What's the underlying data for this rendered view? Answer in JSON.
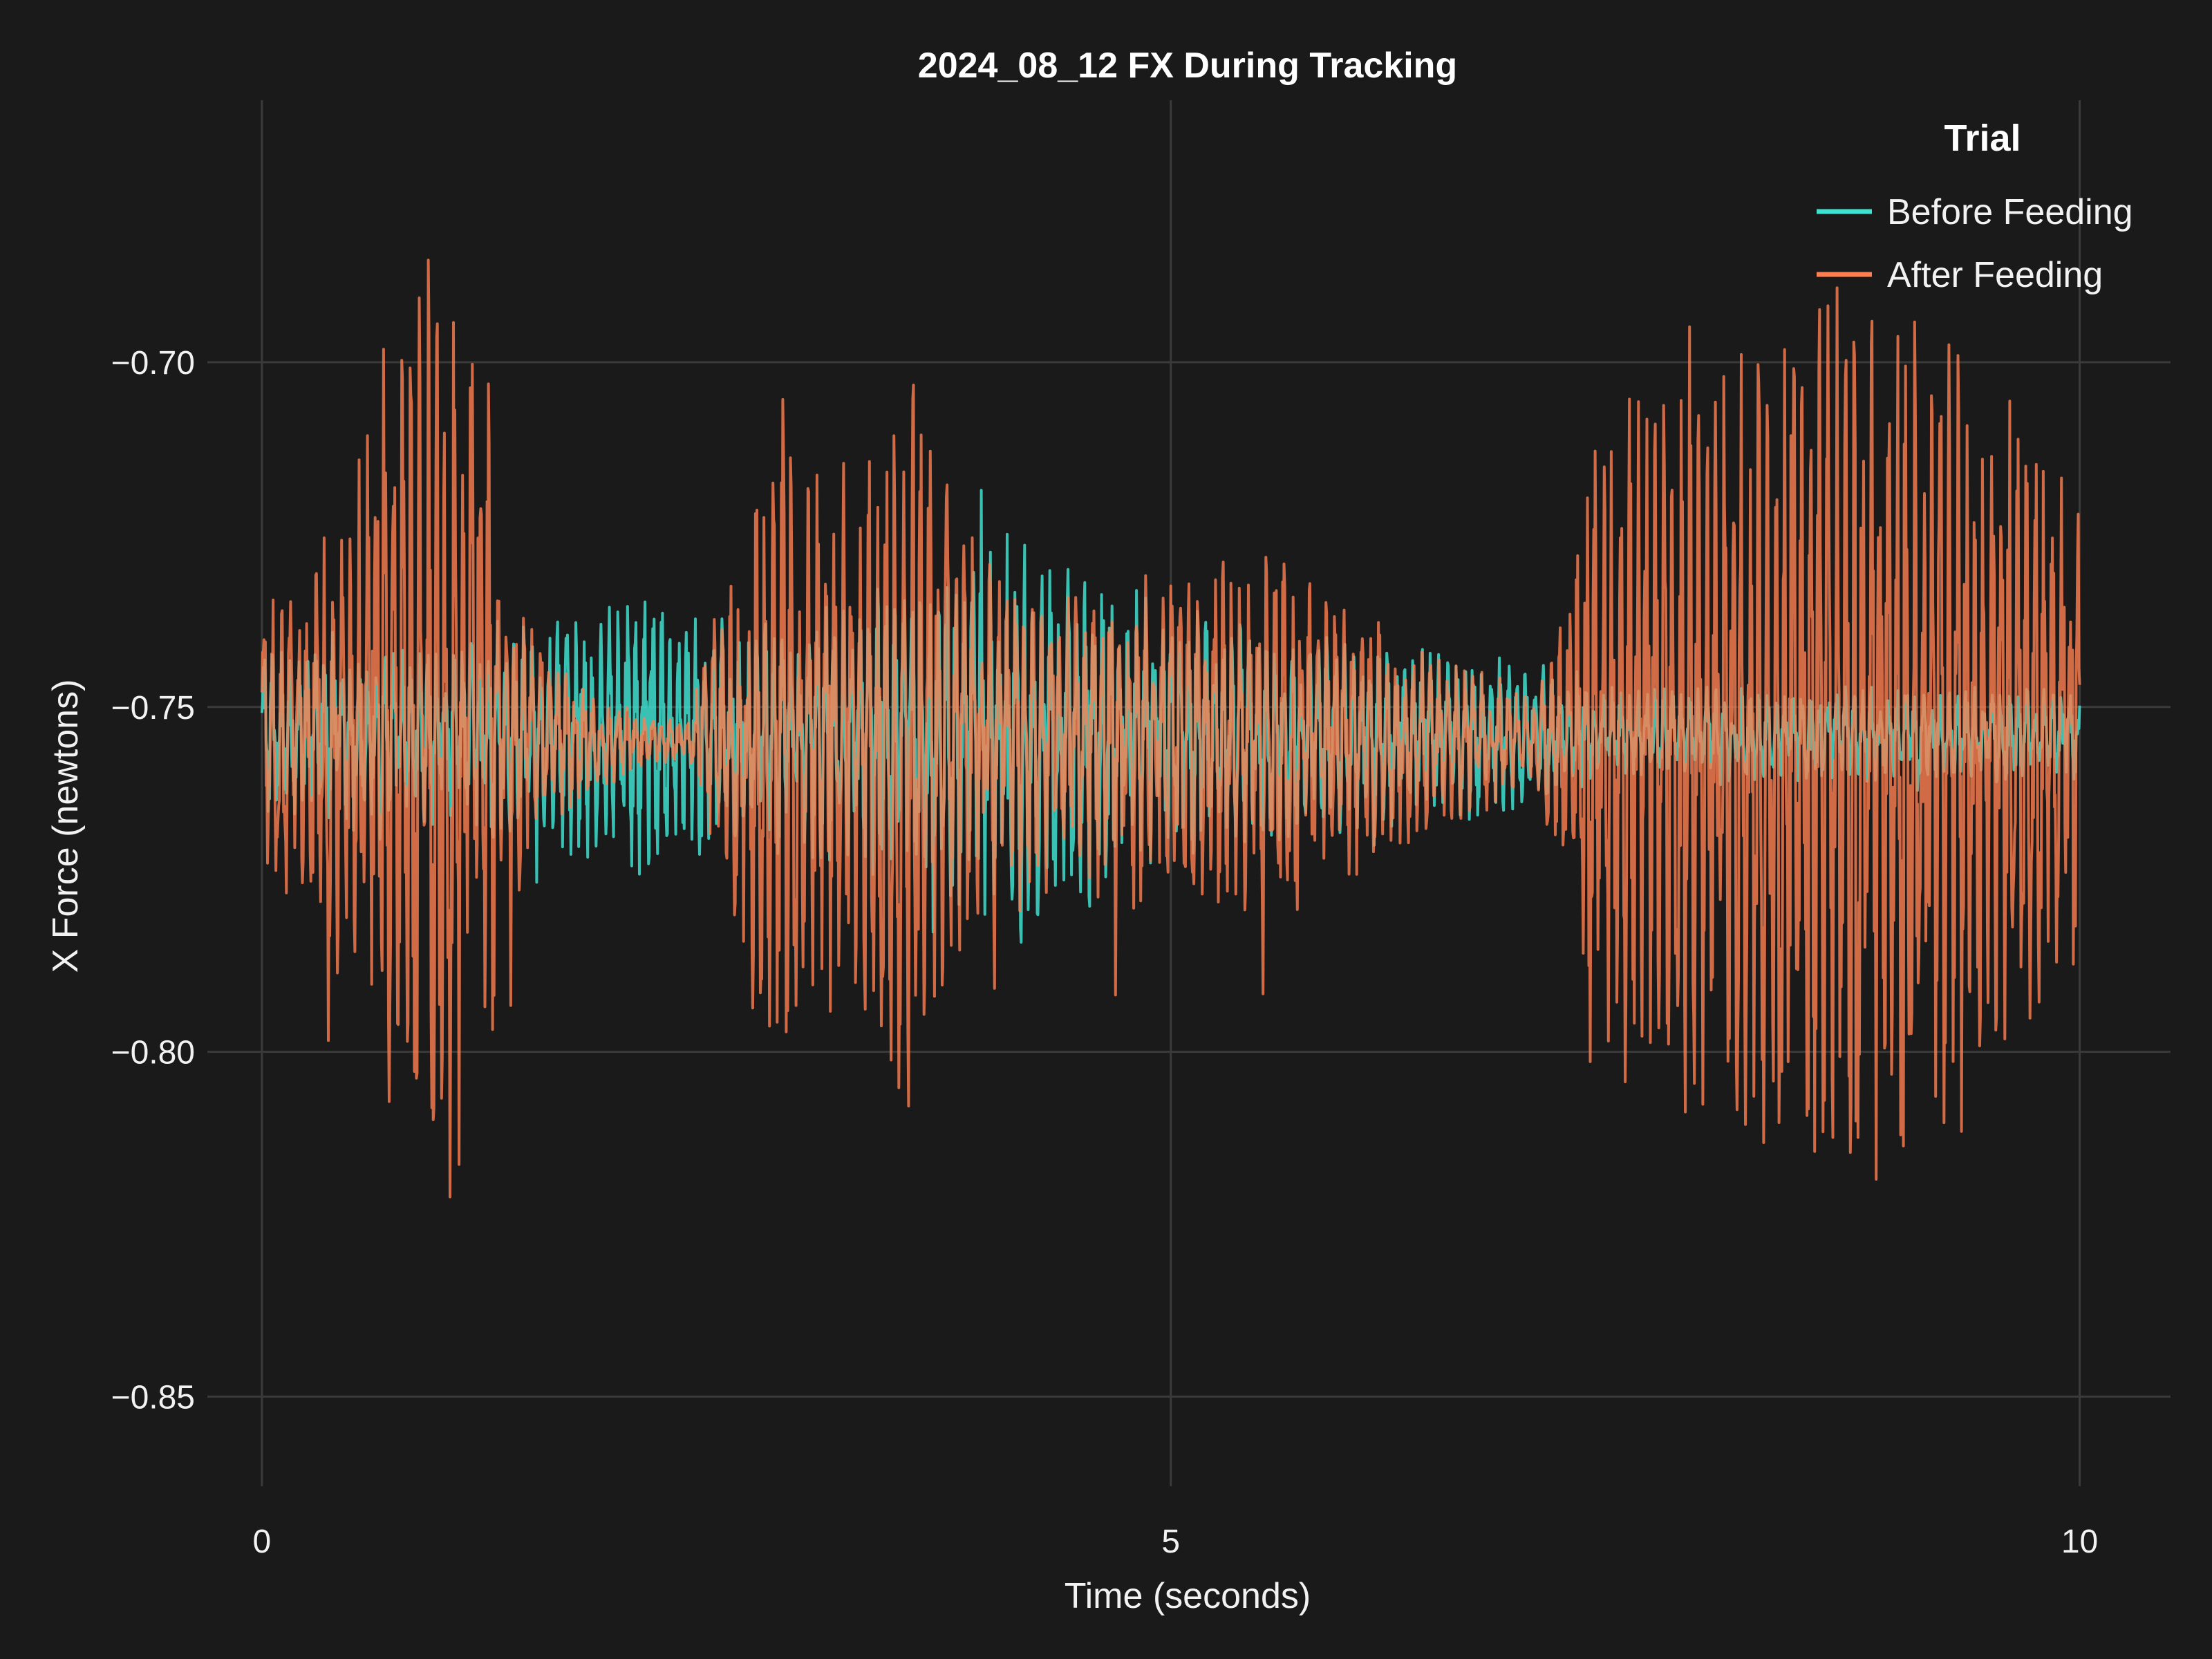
{
  "chart_data": {
    "type": "line",
    "title": "2024_08_12 FX During Tracking",
    "xlabel": "Time (seconds)",
    "ylabel": "X Force (newtons)",
    "xlim": [
      -0.3,
      10.5
    ],
    "ylim": [
      -0.863,
      -0.662
    ],
    "x_ticks": [
      0,
      5,
      10
    ],
    "x_tick_labels": [
      "0",
      "5",
      "10"
    ],
    "y_ticks": [
      -0.7,
      -0.75,
      -0.8,
      -0.85
    ],
    "y_tick_labels": [
      "−0.70",
      "−0.75",
      "−0.80",
      "−0.85"
    ],
    "grid": true,
    "legend": {
      "title": "Trial",
      "position": "top-right"
    },
    "background": "#1a1a1a",
    "series": [
      {
        "name": "Before Feeding",
        "color": "#40e0d0",
        "baseline": -0.754,
        "envelope_t": [
          0,
          0.3,
          0.6,
          1.0,
          1.5,
          1.9,
          2.2,
          2.4,
          2.6,
          2.9,
          3.3,
          3.6,
          3.9,
          4.2,
          4.5,
          4.8,
          5.2,
          5.6,
          6.0,
          6.4,
          6.8,
          7.1,
          7.2,
          7.6,
          8.0,
          8.5,
          9.0,
          9.5,
          10.0
        ],
        "envelope_half_range": [
          0.012,
          0.013,
          0.013,
          0.014,
          0.016,
          0.02,
          0.022,
          0.02,
          0.016,
          0.018,
          0.02,
          0.024,
          0.028,
          0.03,
          0.028,
          0.022,
          0.018,
          0.016,
          0.014,
          0.013,
          0.012,
          0.01,
          0.008,
          0.007,
          0.007,
          0.007,
          0.007,
          0.007,
          0.007
        ]
      },
      {
        "name": "After Feeding",
        "color": "#ff7f50",
        "baseline": -0.755,
        "envelope_t": [
          0,
          0.2,
          0.45,
          0.7,
          0.9,
          1.05,
          1.2,
          1.3,
          1.5,
          1.8,
          2.1,
          2.35,
          2.5,
          2.7,
          2.85,
          3.0,
          3.2,
          3.4,
          3.6,
          3.8,
          4.1,
          4.4,
          4.7,
          5.0,
          5.3,
          5.6,
          5.9,
          6.2,
          6.5,
          6.8,
          7.0,
          7.15,
          7.3,
          7.6,
          8.0,
          8.3,
          8.6,
          8.9,
          9.2,
          9.5,
          9.8,
          10.0
        ],
        "envelope_half_range": [
          0.022,
          0.025,
          0.035,
          0.055,
          0.07,
          0.072,
          0.065,
          0.04,
          0.015,
          0.008,
          0.004,
          0.003,
          0.022,
          0.04,
          0.052,
          0.045,
          0.038,
          0.05,
          0.055,
          0.035,
          0.026,
          0.022,
          0.026,
          0.024,
          0.028,
          0.03,
          0.022,
          0.018,
          0.012,
          0.01,
          0.006,
          0.02,
          0.05,
          0.055,
          0.058,
          0.062,
          0.068,
          0.07,
          0.062,
          0.055,
          0.045,
          0.035
        ]
      }
    ]
  }
}
